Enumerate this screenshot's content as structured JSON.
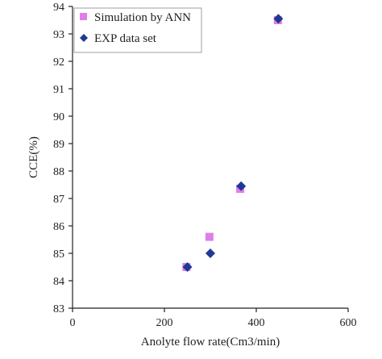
{
  "chart_data": {
    "type": "scatter",
    "title": "",
    "xlabel": "Anolyte flow rate(Cm3/min)",
    "ylabel": "CCE(%)",
    "xlim": [
      0,
      600
    ],
    "ylim": [
      83,
      94
    ],
    "x_ticks": [
      "0",
      "200",
      "400",
      "600"
    ],
    "y_ticks": [
      "83",
      "84",
      "85",
      "86",
      "87",
      "88",
      "89",
      "90",
      "91",
      "92",
      "93",
      "94"
    ],
    "grid": false,
    "legend_position": "top-left",
    "series": [
      {
        "name": "Simulation by ANN",
        "marker": "square",
        "color": "#e07ee8",
        "points": [
          {
            "x": 248,
            "y": 84.5
          },
          {
            "x": 298,
            "y": 85.6
          },
          {
            "x": 365,
            "y": 87.35
          },
          {
            "x": 447,
            "y": 93.5
          }
        ]
      },
      {
        "name": "EXP data set",
        "marker": "diamond",
        "color": "#1f3a93",
        "points": [
          {
            "x": 250,
            "y": 84.5
          },
          {
            "x": 300,
            "y": 85.0
          },
          {
            "x": 367,
            "y": 87.45
          },
          {
            "x": 448,
            "y": 93.55
          }
        ]
      }
    ]
  }
}
